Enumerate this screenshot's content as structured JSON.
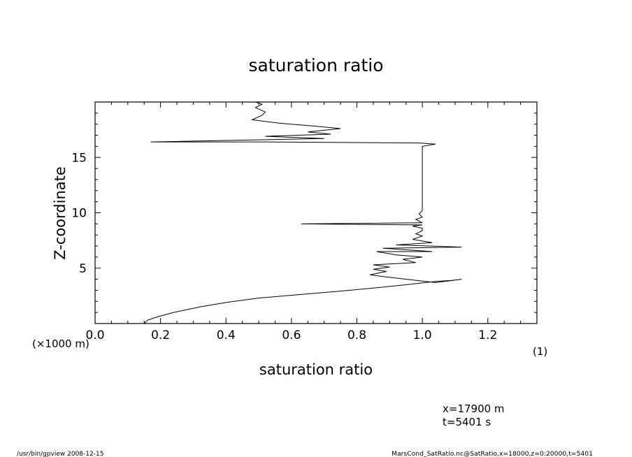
{
  "chart_data": {
    "type": "line",
    "title": "saturation ratio",
    "xlabel": "saturation ratio",
    "ylabel": "Z-coordinate",
    "xlim": [
      0.0,
      1.35
    ],
    "ylim": [
      0,
      20
    ],
    "x_ticks": [
      0.0,
      0.2,
      0.4,
      0.6,
      0.8,
      1.0,
      1.2
    ],
    "x_tick_labels": [
      "0.0",
      "0.2",
      "0.4",
      "0.6",
      "0.8",
      "1.0",
      "1.2"
    ],
    "y_ticks": [
      5,
      10,
      15
    ],
    "y_tick_labels": [
      "5",
      "10",
      "15"
    ],
    "y_unit_label": "(×1000 m)",
    "x_unit_label": "(1)",
    "grid": false,
    "series": [
      {
        "points": [
          [
            0.15,
            0.0
          ],
          [
            0.16,
            0.3
          ],
          [
            0.19,
            0.6
          ],
          [
            0.24,
            1.0
          ],
          [
            0.32,
            1.5
          ],
          [
            0.4,
            1.9
          ],
          [
            0.5,
            2.3
          ],
          [
            0.62,
            2.6
          ],
          [
            0.74,
            2.9
          ],
          [
            0.85,
            3.2
          ],
          [
            0.95,
            3.5
          ],
          [
            1.04,
            3.8
          ],
          [
            1.09,
            3.9
          ],
          [
            1.12,
            4.0
          ],
          [
            1.04,
            3.7
          ],
          [
            0.89,
            4.2
          ],
          [
            0.84,
            4.4
          ],
          [
            0.89,
            4.7
          ],
          [
            0.85,
            4.9
          ],
          [
            0.9,
            5.1
          ],
          [
            0.85,
            5.3
          ],
          [
            0.98,
            5.5
          ],
          [
            0.94,
            5.8
          ],
          [
            1.0,
            6.0
          ],
          [
            0.92,
            6.2
          ],
          [
            0.86,
            6.5
          ],
          [
            1.03,
            6.5
          ],
          [
            0.88,
            6.8
          ],
          [
            1.12,
            6.9
          ],
          [
            0.92,
            7.1
          ],
          [
            1.03,
            7.3
          ],
          [
            0.97,
            7.6
          ],
          [
            1.0,
            7.9
          ],
          [
            0.98,
            8.1
          ],
          [
            1.0,
            8.4
          ],
          [
            1.0,
            8.6
          ],
          [
            0.97,
            8.8
          ],
          [
            1.0,
            8.9
          ],
          [
            0.63,
            9.0
          ],
          [
            1.0,
            9.1
          ],
          [
            0.98,
            9.4
          ],
          [
            1.0,
            9.6
          ],
          [
            0.99,
            9.9
          ],
          [
            1.0,
            10.2
          ],
          [
            1.0,
            12.0
          ],
          [
            1.0,
            14.0
          ],
          [
            1.0,
            16.0
          ],
          [
            1.04,
            16.2
          ],
          [
            0.99,
            16.3
          ],
          [
            0.5,
            16.4
          ],
          [
            0.17,
            16.4
          ],
          [
            0.7,
            16.7
          ],
          [
            0.52,
            16.9
          ],
          [
            0.72,
            17.1
          ],
          [
            0.65,
            17.3
          ],
          [
            0.75,
            17.6
          ],
          [
            0.68,
            17.8
          ],
          [
            0.56,
            18.1
          ],
          [
            0.48,
            18.4
          ],
          [
            0.51,
            18.8
          ],
          [
            0.52,
            19.1
          ],
          [
            0.49,
            19.5
          ],
          [
            0.51,
            19.8
          ],
          [
            0.49,
            20.0
          ]
        ]
      }
    ],
    "annotations": [
      "x=17900  m",
      "t=5401  s"
    ]
  },
  "footer": {
    "left": "/usr/bin/gpview   2008-12-15",
    "right": "MarsCond_SatRatio.nc@SatRatio,x=18000,z=0:20000,t=5401"
  }
}
